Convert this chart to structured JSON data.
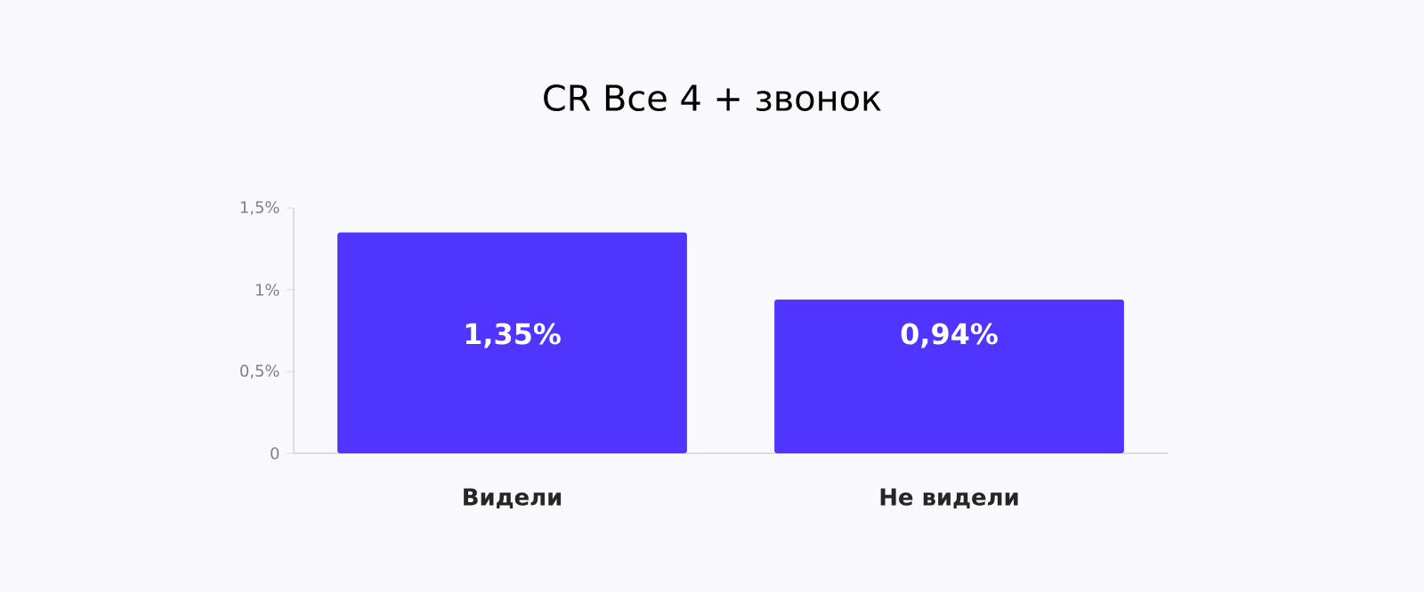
{
  "chart_data": {
    "type": "bar",
    "title": "CR Все 4 + звонок",
    "categories": [
      "Видели",
      "Не видели"
    ],
    "values": [
      1.35,
      0.94
    ],
    "value_labels": [
      "1,35%",
      "0,94%"
    ],
    "color": "#4f35ff",
    "ylim": [
      0,
      1.5
    ],
    "yticks": [
      0,
      {
        "value": 0.5,
        "label": "0,5%"
      },
      {
        "value": 1,
        "label": "1%"
      },
      {
        "value": 1.5,
        "label": "1,5%"
      }
    ],
    "grid": false
  }
}
